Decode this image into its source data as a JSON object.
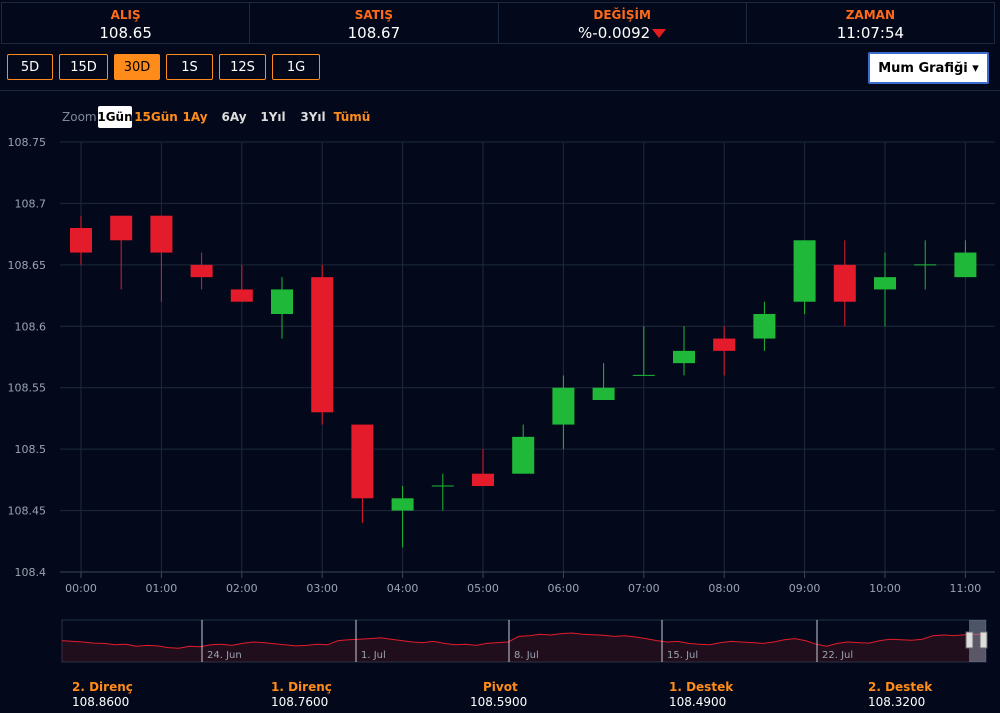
{
  "quote": {
    "bid_label": "ALIŞ",
    "bid_value": "108.65",
    "ask_label": "SATIŞ",
    "ask_value": "108.67",
    "change_label": "DEĞİŞİM",
    "change_value": "%-0.0092",
    "time_label": "ZAMAN",
    "time_value": "11:07:54"
  },
  "ranges": [
    "5D",
    "15D",
    "30D",
    "1S",
    "12S",
    "1G"
  ],
  "active_range": "30D",
  "chart_type_select": "Mum Grafiği ▾",
  "zoom": {
    "label": "Zoom",
    "options": [
      "1Gün",
      "15Gün",
      "1Ay",
      "6Ay",
      "1Yıl",
      "3Yıl",
      "Tümü"
    ],
    "active": "1Gün"
  },
  "colors": {
    "up": "#1fb838",
    "down": "#e31b2b",
    "accent": "#ff8c1a",
    "background": "#03091a"
  },
  "chart_data": {
    "type": "candlestick",
    "ylim": [
      108.4,
      108.75
    ],
    "yticks": [
      "108.4",
      "108.45",
      "108.5",
      "108.55",
      "108.6",
      "108.65",
      "108.7",
      "108.75"
    ],
    "xticks": [
      "00:00",
      "01:00",
      "02:00",
      "03:00",
      "04:00",
      "05:00",
      "06:00",
      "07:00",
      "08:00",
      "09:00",
      "10:00",
      "11:00"
    ],
    "x": [
      "00:00",
      "00:30",
      "01:00",
      "01:30",
      "02:00",
      "02:30",
      "03:00",
      "03:30",
      "04:00",
      "04:30",
      "05:00",
      "05:30",
      "06:00",
      "06:30",
      "07:00",
      "07:30",
      "08:00",
      "08:30",
      "09:00",
      "09:30",
      "10:00",
      "10:30",
      "11:00"
    ],
    "open": [
      108.68,
      108.69,
      108.69,
      108.65,
      108.63,
      108.61,
      108.64,
      108.52,
      108.45,
      108.47,
      108.48,
      108.48,
      108.52,
      108.54,
      108.56,
      108.57,
      108.59,
      108.59,
      108.62,
      108.65,
      108.63,
      108.65,
      108.64
    ],
    "high": [
      108.69,
      108.69,
      108.69,
      108.66,
      108.65,
      108.64,
      108.65,
      108.52,
      108.47,
      108.48,
      108.5,
      108.52,
      108.56,
      108.57,
      108.6,
      108.6,
      108.6,
      108.62,
      108.67,
      108.67,
      108.66,
      108.67,
      108.67
    ],
    "low": [
      108.65,
      108.63,
      108.62,
      108.63,
      108.62,
      108.59,
      108.52,
      108.44,
      108.42,
      108.45,
      108.47,
      108.48,
      108.5,
      108.54,
      108.56,
      108.56,
      108.56,
      108.58,
      108.61,
      108.6,
      108.6,
      108.63,
      108.64
    ],
    "close": [
      108.66,
      108.67,
      108.66,
      108.64,
      108.62,
      108.63,
      108.53,
      108.46,
      108.46,
      108.47,
      108.47,
      108.51,
      108.55,
      108.55,
      108.56,
      108.58,
      108.58,
      108.61,
      108.67,
      108.62,
      108.64,
      108.65,
      108.66
    ]
  },
  "navigator": {
    "labels": [
      "24. Jun",
      "1. Jul",
      "8. Jul",
      "15. Jul",
      "22. Jul"
    ],
    "series": [
      0.55,
      0.52,
      0.5,
      0.46,
      0.45,
      0.4,
      0.42,
      0.35,
      0.38,
      0.36,
      0.3,
      0.28,
      0.35,
      0.33,
      0.4,
      0.42,
      0.38,
      0.45,
      0.5,
      0.48,
      0.44,
      0.4,
      0.36,
      0.38,
      0.42,
      0.4,
      0.55,
      0.58,
      0.6,
      0.62,
      0.65,
      0.6,
      0.55,
      0.5,
      0.48,
      0.52,
      0.45,
      0.4,
      0.42,
      0.38,
      0.45,
      0.48,
      0.5,
      0.7,
      0.72,
      0.78,
      0.75,
      0.8,
      0.82,
      0.78,
      0.76,
      0.74,
      0.7,
      0.72,
      0.68,
      0.62,
      0.55,
      0.5,
      0.52,
      0.45,
      0.42,
      0.4,
      0.48,
      0.52,
      0.5,
      0.48,
      0.45,
      0.5,
      0.58,
      0.62,
      0.55,
      0.42,
      0.35,
      0.45,
      0.5,
      0.48,
      0.46,
      0.55,
      0.6,
      0.58,
      0.56,
      0.6,
      0.72,
      0.75,
      0.73,
      0.76,
      0.78,
      0.76
    ]
  },
  "pivots": [
    {
      "label": "2. Direnç",
      "value": "108.8600"
    },
    {
      "label": "1. Direnç",
      "value": "108.7600"
    },
    {
      "label": "Pivot",
      "value": "108.5900"
    },
    {
      "label": "1. Destek",
      "value": "108.4900"
    },
    {
      "label": "2. Destek",
      "value": "108.3200"
    }
  ]
}
